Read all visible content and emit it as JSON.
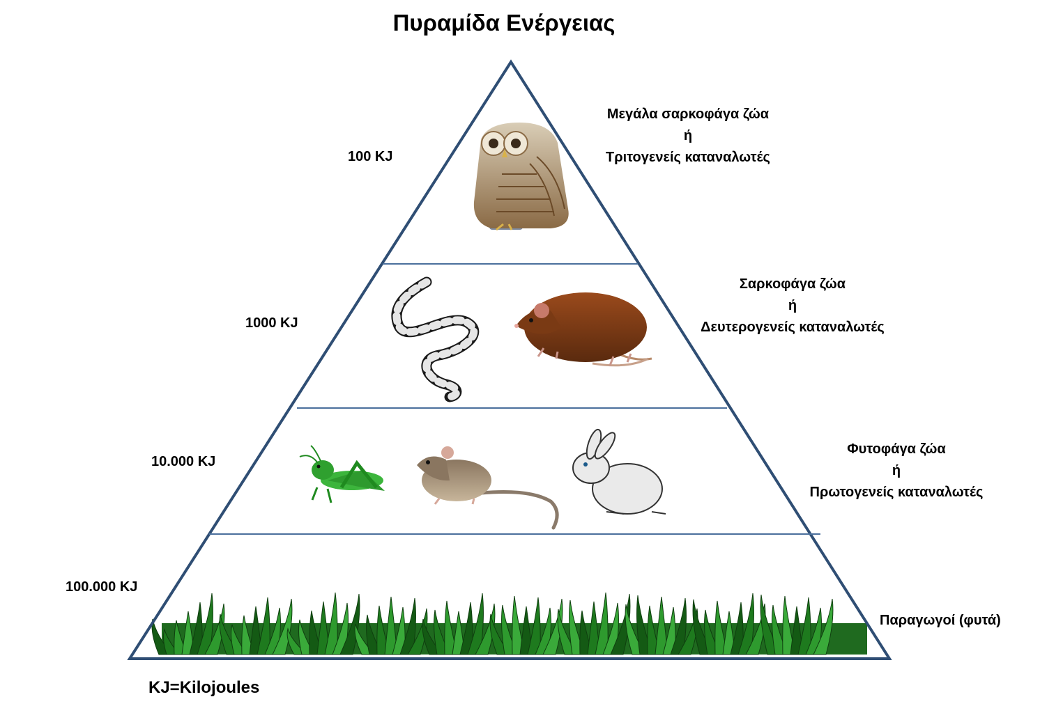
{
  "title": "Πυραμίδα Ενέργειας",
  "footer_note": "KJ=Kilojoules",
  "levels": [
    {
      "energy": "100 KJ",
      "line1": "Μεγάλα σαρκοφάγα ζώα",
      "line2": "ή",
      "line3": "Τριτογενείς καταναλωτές",
      "icons": [
        "owl-icon"
      ]
    },
    {
      "energy": "1000 KJ",
      "line1": "Σαρκοφάγα ζώα",
      "line2": "ή",
      "line3": "Δευτερογενείς καταναλωτές",
      "icons": [
        "snake-icon",
        "rat-icon"
      ]
    },
    {
      "energy": "10.000 KJ",
      "line1": "Φυτοφάγα ζώα",
      "line2": "ή",
      "line3": "Πρωτογενείς καταναλωτές",
      "icons": [
        "grasshopper-icon",
        "mouse-icon",
        "rabbit-icon"
      ]
    },
    {
      "energy": "100.000 KJ",
      "line1": "Παραγωγοί (φυτά)",
      "icons": [
        "grass-icon"
      ]
    }
  ],
  "colors": {
    "pyramid_outline": "#2f4e74",
    "divider": "#4a6f9c",
    "grass": "#2e8b2e"
  }
}
